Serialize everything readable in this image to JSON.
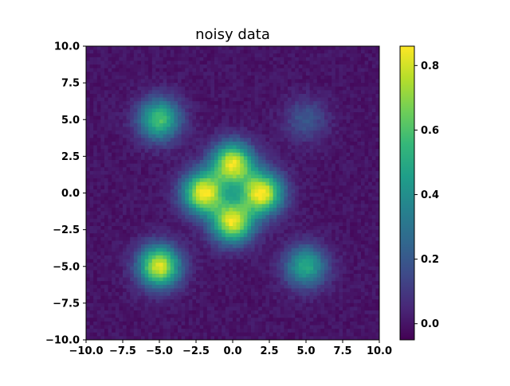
{
  "chart_data": {
    "type": "heatmap",
    "title": "noisy data",
    "xlabel": "",
    "ylabel": "",
    "xlim": [
      -10.0,
      10.0
    ],
    "ylim": [
      -10.0,
      10.0
    ],
    "x_ticks": [
      "−10.0",
      "−7.5",
      "−5.0",
      "−2.5",
      "0.0",
      "2.5",
      "5.0",
      "7.5",
      "10.0"
    ],
    "y_ticks": [
      "10.0",
      "7.5",
      "5.0",
      "2.5",
      "0.0",
      "−2.5",
      "−5.0",
      "−7.5",
      "−10.0"
    ],
    "colormap": "viridis",
    "colorbar": {
      "range": [
        -0.05,
        0.86
      ],
      "ticks": [
        "0.8",
        "0.6",
        "0.4",
        "0.2",
        "0.0"
      ]
    },
    "grid": false,
    "features": [
      {
        "x": -5,
        "y": 5,
        "peak": 0.6
      },
      {
        "x": 5,
        "y": 5,
        "peak": 0.2
      },
      {
        "x": -5,
        "y": -5,
        "peak": 0.82
      },
      {
        "x": 5,
        "y": -5,
        "peak": 0.5
      },
      {
        "x": 0,
        "y": 2,
        "peak": 0.82
      },
      {
        "x": 0,
        "y": -2,
        "peak": 0.82
      },
      {
        "x": 2,
        "y": 0,
        "peak": 0.85
      },
      {
        "x": -2,
        "y": 0,
        "peak": 0.85
      }
    ],
    "center_dip": {
      "x": 0,
      "y": 0,
      "value": 0.3
    },
    "noise_level": 0.03,
    "grid_resolution": 80
  }
}
